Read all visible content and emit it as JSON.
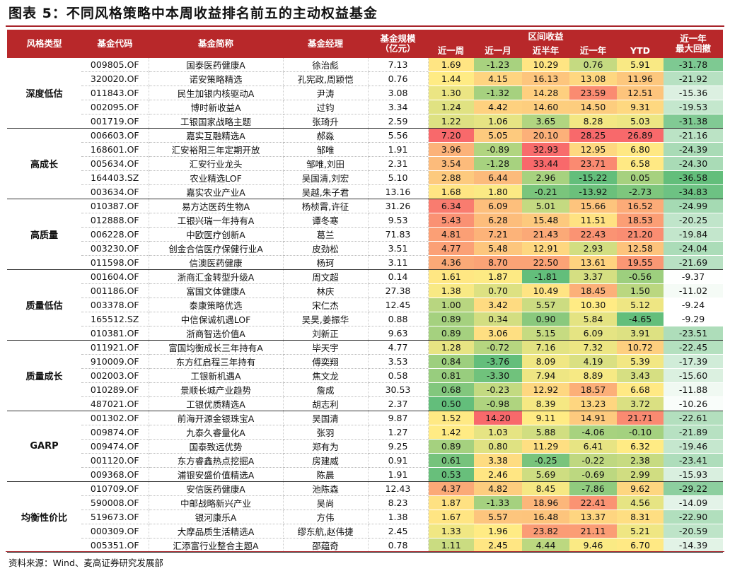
{
  "header": {
    "title": "图表 5：不同风格策略中本周收益排名前五的主动权益基金"
  },
  "table": {
    "columns": [
      "风格类型",
      "基金代码",
      "基金简称",
      "基金经理",
      "基金规模",
      "（亿元）",
      "区间收益",
      "近一周",
      "近一月",
      "近半年",
      "近一年",
      "YTD",
      "近一年",
      "最大回撤"
    ],
    "groups": [
      {
        "name": "深度低估",
        "rows": [
          [
            "009805.OF",
            "国泰医药健康A",
            "徐治彪",
            "7.13",
            "1.69",
            "-1.23",
            "10.29",
            "0.76",
            "5.91",
            "-31.78"
          ],
          [
            "320020.OF",
            "诺安策略精选",
            "孔宪政,周颖恺",
            "0.76",
            "1.44",
            "4.15",
            "16.13",
            "13.08",
            "11.96",
            "-21.92"
          ],
          [
            "011843.OF",
            "民生加银内核驱动A",
            "尹涛",
            "3.08",
            "1.30",
            "-1.32",
            "14.28",
            "23.59",
            "12.51",
            "-15.36"
          ],
          [
            "002095.OF",
            "博时新收益A",
            "过钧",
            "3.34",
            "1.24",
            "4.42",
            "14.60",
            "14.50",
            "9.31",
            "-19.53"
          ],
          [
            "001719.OF",
            "工银国家战略主题",
            "张琦升",
            "2.59",
            "1.22",
            "1.06",
            "3.65",
            "8.28",
            "5.03",
            "-31.38"
          ]
        ]
      },
      {
        "name": "高成长",
        "rows": [
          [
            "006603.OF",
            "嘉实互融精选A",
            "郝淼",
            "5.56",
            "7.20",
            "5.05",
            "20.10",
            "28.25",
            "26.89",
            "-21.16"
          ],
          [
            "168601.OF",
            "汇安裕阳三年定期开放",
            "邹唯",
            "1.91",
            "3.96",
            "-0.89",
            "32.93",
            "12.95",
            "6.80",
            "-24.39"
          ],
          [
            "005634.OF",
            "汇安行业龙头",
            "邹唯,刘田",
            "2.31",
            "3.54",
            "-1.28",
            "33.44",
            "23.71",
            "6.58",
            "-24.30"
          ],
          [
            "164403.SZ",
            "农业精选LOF",
            "吴国清,刘宏",
            "5.10",
            "2.88",
            "6.44",
            "2.96",
            "-15.22",
            "0.05",
            "-36.58"
          ],
          [
            "003634.OF",
            "嘉实农业产业A",
            "吴越,朱子君",
            "13.16",
            "1.68",
            "1.80",
            "-0.21",
            "-13.92",
            "-2.73",
            "-34.83"
          ]
        ]
      },
      {
        "name": "高质量",
        "rows": [
          [
            "010387.OF",
            "易方达医药生物A",
            "杨桢霄,许征",
            "31.26",
            "6.34",
            "6.09",
            "5.01",
            "15.66",
            "16.52",
            "-24.99"
          ],
          [
            "012888.OF",
            "工银兴瑞一年持有A",
            "谭冬寒",
            "9.53",
            "5.43",
            "6.28",
            "15.48",
            "11.51",
            "18.53",
            "-20.25"
          ],
          [
            "006228.OF",
            "中欧医疗创新A",
            "葛兰",
            "71.83",
            "4.81",
            "7.21",
            "21.43",
            "22.43",
            "21.20",
            "-19.84"
          ],
          [
            "003230.OF",
            "创金合信医疗保健行业A",
            "皮劲松",
            "3.51",
            "4.77",
            "5.48",
            "12.91",
            "2.93",
            "12.58",
            "-24.04"
          ],
          [
            "011598.OF",
            "信澳医药健康",
            "杨珂",
            "3.11",
            "4.36",
            "8.70",
            "22.50",
            "13.61",
            "19.55",
            "-21.69"
          ]
        ]
      },
      {
        "name": "质量低估",
        "rows": [
          [
            "001604.OF",
            "浙商汇金转型升级A",
            "周文超",
            "0.14",
            "1.61",
            "1.87",
            "-1.81",
            "3.37",
            "-0.56",
            "-9.37"
          ],
          [
            "001186.OF",
            "富国文体健康A",
            "林庆",
            "27.38",
            "1.38",
            "0.70",
            "10.49",
            "18.45",
            "1.50",
            "-11.02"
          ],
          [
            "003378.OF",
            "泰康策略优选",
            "宋仁杰",
            "12.45",
            "1.00",
            "3.42",
            "5.57",
            "10.30",
            "5.12",
            "-9.24"
          ],
          [
            "165512.SZ",
            "中信保诚机遇LOF",
            "吴昊,姜振华",
            "0.88",
            "0.89",
            "0.34",
            "0.90",
            "5.84",
            "-4.65",
            "-9.29"
          ],
          [
            "010381.OF",
            "浙商智选价值A",
            "刘新正",
            "9.63",
            "0.89",
            "3.06",
            "5.15",
            "6.09",
            "3.91",
            "-23.51"
          ]
        ]
      },
      {
        "name": "质量成长",
        "rows": [
          [
            "011921.OF",
            "富国均衡成长三年持有A",
            "毕天宇",
            "4.77",
            "1.28",
            "-0.72",
            "7.16",
            "7.32",
            "10.72",
            "-22.45"
          ],
          [
            "910009.OF",
            "东方红启程三年持有",
            "傅奕翔",
            "3.53",
            "0.84",
            "-3.76",
            "8.09",
            "4.19",
            "5.39",
            "-17.39"
          ],
          [
            "002003.OF",
            "工银新机遇A",
            "焦文龙",
            "0.58",
            "0.81",
            "-3.30",
            "7.94",
            "8.89",
            "3.43",
            "-15.60"
          ],
          [
            "010289.OF",
            "景顺长城产业趋势",
            "詹成",
            "30.53",
            "0.68",
            "-0.23",
            "12.92",
            "18.57",
            "6.68",
            "-11.88"
          ],
          [
            "487021.OF",
            "工银优质精选A",
            "胡志利",
            "2.37",
            "0.50",
            "-0.98",
            "8.39",
            "13.23",
            "3.72",
            "-10.26"
          ]
        ]
      },
      {
        "name": "GARP",
        "rows": [
          [
            "001302.OF",
            "前海开源金银珠宝A",
            "吴国清",
            "9.87",
            "1.52",
            "14.20",
            "9.11",
            "14.91",
            "21.71",
            "-22.61"
          ],
          [
            "009874.OF",
            "九泰久睿量化A",
            "张羽",
            "1.27",
            "1.42",
            "1.03",
            "5.88",
            "-4.06",
            "-0.10",
            "-21.89"
          ],
          [
            "009474.OF",
            "国泰致远优势",
            "郑有为",
            "9.25",
            "0.89",
            "0.80",
            "11.29",
            "6.41",
            "6.32",
            "-19.46"
          ],
          [
            "001120.OF",
            "东方睿鑫热点挖掘A",
            "房建威",
            "0.91",
            "0.61",
            "3.38",
            "-0.25",
            "-0.22",
            "2.38",
            "-23.41"
          ],
          [
            "009368.OF",
            "浦银安盛价值精选A",
            "陈晨",
            "1.91",
            "0.53",
            "2.46",
            "5.69",
            "-0.69",
            "2.99",
            "-15.93"
          ]
        ]
      },
      {
        "name": "均衡性价比",
        "rows": [
          [
            "010709.OF",
            "安信医药健康A",
            "池陈森",
            "12.43",
            "4.37",
            "4.82",
            "8.45",
            "-7.86",
            "9.62",
            "-29.22"
          ],
          [
            "590008.OF",
            "中邮战略新兴产业",
            "吴尚",
            "8.23",
            "1.87",
            "-1.33",
            "18.96",
            "22.41",
            "4.56",
            "-14.09"
          ],
          [
            "519673.OF",
            "银河康乐A",
            "方伟",
            "1.38",
            "1.67",
            "5.57",
            "16.48",
            "13.37",
            "8.31",
            "-22.90"
          ],
          [
            "000309.OF",
            "大摩品质生活精选A",
            "缪东航,赵伟捷",
            "2.45",
            "1.33",
            "1.96",
            "23.82",
            "21.11",
            "5.21",
            "-20.59"
          ],
          [
            "005351.OF",
            "汇添富行业整合主题A",
            "邵蕴奇",
            "0.78",
            "1.11",
            "2.45",
            "4.44",
            "9.46",
            "6.70",
            "-14.39"
          ]
        ]
      }
    ]
  },
  "footer": {
    "source": "资料来源：Wind、麦高证券研究发展部"
  }
}
